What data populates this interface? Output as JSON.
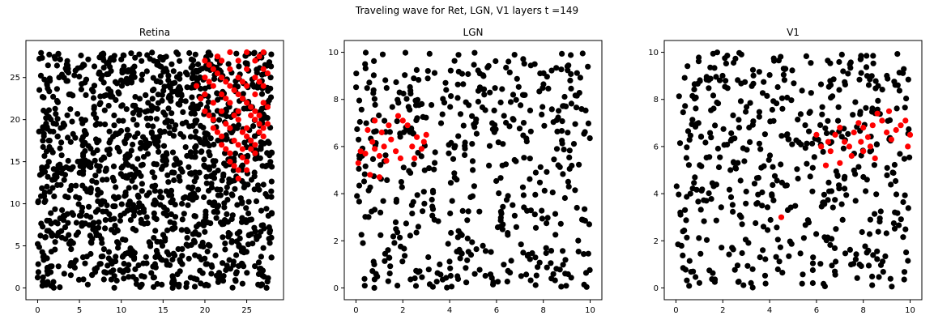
{
  "figure": {
    "suptitle": "Traveling wave for Ret, LGN, V1 layers t =149"
  },
  "chart_data": [
    {
      "type": "scatter",
      "title": "Retina",
      "xlim": [
        -1.4,
        29.4
      ],
      "ylim": [
        -1.4,
        29.4
      ],
      "xticks": [
        0,
        5,
        10,
        15,
        20,
        25
      ],
      "yticks": [
        0,
        5,
        10,
        15,
        20,
        25
      ],
      "grid": false,
      "colors": {
        "inactive": "#000000",
        "active": "#ff0000"
      },
      "series": [
        {
          "role": "inactive",
          "generator": {
            "count": 1400,
            "xrange": [
              0,
              28
            ],
            "yrange": [
              0,
              28
            ],
            "seed": 11
          }
        },
        {
          "role": "active",
          "points": [
            [
              20,
              27
            ],
            [
              21,
              26
            ],
            [
              22,
              27
            ],
            [
              23,
              28
            ],
            [
              24,
              27
            ],
            [
              25,
              28
            ],
            [
              26,
              27
            ],
            [
              27,
              28
            ],
            [
              20,
              25
            ],
            [
              21,
              24
            ],
            [
              22,
              25
            ],
            [
              23,
              26
            ],
            [
              24,
              25
            ],
            [
              25,
              26
            ],
            [
              26,
              25
            ],
            [
              27,
              26
            ],
            [
              19,
              24
            ],
            [
              20,
              23
            ],
            [
              21,
              22
            ],
            [
              22,
              23
            ],
            [
              23,
              24
            ],
            [
              24,
              23
            ],
            [
              25,
              24
            ],
            [
              26,
              23
            ],
            [
              27,
              24
            ],
            [
              20,
              21
            ],
            [
              21,
              20
            ],
            [
              22,
              21
            ],
            [
              23,
              22
            ],
            [
              24,
              21
            ],
            [
              25,
              22
            ],
            [
              26,
              21
            ],
            [
              27,
              22
            ],
            [
              21,
              19
            ],
            [
              22,
              18
            ],
            [
              23,
              19
            ],
            [
              24,
              20
            ],
            [
              25,
              19
            ],
            [
              26,
              20
            ],
            [
              27,
              19
            ],
            [
              22,
              17
            ],
            [
              23,
              16
            ],
            [
              24,
              17
            ],
            [
              25,
              18
            ],
            [
              26,
              17
            ],
            [
              27,
              18
            ],
            [
              23,
              15
            ],
            [
              24,
              14
            ],
            [
              25,
              15
            ],
            [
              26,
              16
            ],
            [
              24,
              13
            ],
            [
              25,
              14
            ],
            [
              20.5,
              26.5
            ],
            [
              21.5,
              25.5
            ],
            [
              22.5,
              24.5
            ],
            [
              23.5,
              23.5
            ],
            [
              24.5,
              22.5
            ],
            [
              25.5,
              21.5
            ],
            [
              26.5,
              20.5
            ],
            [
              27.5,
              19.5
            ],
            [
              19.5,
              22.5
            ],
            [
              20.5,
              20.5
            ],
            [
              21.5,
              18.5
            ],
            [
              22.5,
              16.5
            ],
            [
              23.5,
              14.5
            ],
            [
              24.5,
              15.5
            ],
            [
              25.5,
              16.5
            ],
            [
              26.5,
              18.5
            ],
            [
              27.5,
              21.5
            ],
            [
              27.5,
              25.5
            ],
            [
              26.5,
              27.5
            ],
            [
              21.5,
              27.5
            ],
            [
              20.5,
              24.5
            ],
            [
              22.5,
              22.5
            ],
            [
              24.5,
              24.5
            ],
            [
              26.5,
              24.5
            ],
            [
              23.5,
              20.5
            ],
            [
              25.5,
              20.5
            ],
            [
              22.5,
              19.5
            ],
            [
              24.5,
              18.5
            ],
            [
              26.5,
              19.5
            ],
            [
              23.5,
              17.5
            ],
            [
              25.5,
              17.5
            ],
            [
              24.5,
              16.5
            ]
          ]
        }
      ]
    },
    {
      "type": "scatter",
      "title": "LGN",
      "xlim": [
        -0.5,
        10.5
      ],
      "ylim": [
        -0.5,
        10.5
      ],
      "xticks": [
        0,
        2,
        4,
        6,
        8,
        10
      ],
      "yticks": [
        0,
        2,
        4,
        6,
        8,
        10
      ],
      "grid": false,
      "colors": {
        "inactive": "#000000",
        "active": "#ff0000"
      },
      "series": [
        {
          "role": "inactive",
          "generator": {
            "count": 500,
            "xrange": [
              0,
              10
            ],
            "yrange": [
              0,
              10
            ],
            "seed": 23
          }
        },
        {
          "role": "active",
          "points": [
            [
              0.1,
              5.3
            ],
            [
              0.2,
              5.8
            ],
            [
              0.4,
              5.7
            ],
            [
              0.5,
              6.7
            ],
            [
              0.7,
              6.2
            ],
            [
              0.8,
              5.9
            ],
            [
              1.0,
              5.6
            ],
            [
              1.2,
              6.0
            ],
            [
              1.3,
              5.4
            ],
            [
              1.5,
              6.3
            ],
            [
              1.7,
              5.8
            ],
            [
              1.9,
              5.5
            ],
            [
              2.0,
              7.1
            ],
            [
              2.2,
              6.9
            ],
            [
              1.8,
              7.3
            ],
            [
              2.4,
              6.0
            ],
            [
              2.6,
              6.4
            ],
            [
              2.8,
              5.9
            ],
            [
              3.0,
              6.5
            ],
            [
              2.5,
              5.5
            ],
            [
              0.8,
              7.1
            ],
            [
              1.1,
              6.6
            ],
            [
              0.6,
              4.8
            ],
            [
              1.0,
              4.7
            ],
            [
              2.9,
              6.2
            ],
            [
              1.4,
              6.9
            ]
          ]
        }
      ]
    },
    {
      "type": "scatter",
      "title": "V1",
      "xlim": [
        -0.5,
        10.5
      ],
      "ylim": [
        -0.5,
        10.5
      ],
      "xticks": [
        0,
        2,
        4,
        6,
        8,
        10
      ],
      "yticks": [
        0,
        2,
        4,
        6,
        8,
        10
      ],
      "grid": false,
      "colors": {
        "inactive": "#000000",
        "active": "#ff0000"
      },
      "series": [
        {
          "role": "inactive",
          "generator": {
            "count": 500,
            "xrange": [
              0,
              10
            ],
            "yrange": [
              0,
              10
            ],
            "seed": 37
          }
        },
        {
          "role": "active",
          "points": [
            [
              6.0,
              6.5
            ],
            [
              6.2,
              6.0
            ],
            [
              6.5,
              6.2
            ],
            [
              6.8,
              6.5
            ],
            [
              7.0,
              6.8
            ],
            [
              7.2,
              6.2
            ],
            [
              7.4,
              6.0
            ],
            [
              7.6,
              6.6
            ],
            [
              7.8,
              7.0
            ],
            [
              8.0,
              6.8
            ],
            [
              8.2,
              6.4
            ],
            [
              8.4,
              6.9
            ],
            [
              8.6,
              7.4
            ],
            [
              8.8,
              7.1
            ],
            [
              9.0,
              6.6
            ],
            [
              9.2,
              6.3
            ],
            [
              9.4,
              6.7
            ],
            [
              9.6,
              6.9
            ],
            [
              9.8,
              7.1
            ],
            [
              10.0,
              6.5
            ],
            [
              7.5,
              5.6
            ],
            [
              8.0,
              5.8
            ],
            [
              8.5,
              5.5
            ],
            [
              7.0,
              5.3
            ],
            [
              6.6,
              5.8
            ],
            [
              9.1,
              7.5
            ],
            [
              8.3,
              6.0
            ],
            [
              7.9,
              6.2
            ],
            [
              6.4,
              5.2
            ],
            [
              9.9,
              6.0
            ],
            [
              4.5,
              3.0
            ]
          ]
        }
      ]
    }
  ]
}
